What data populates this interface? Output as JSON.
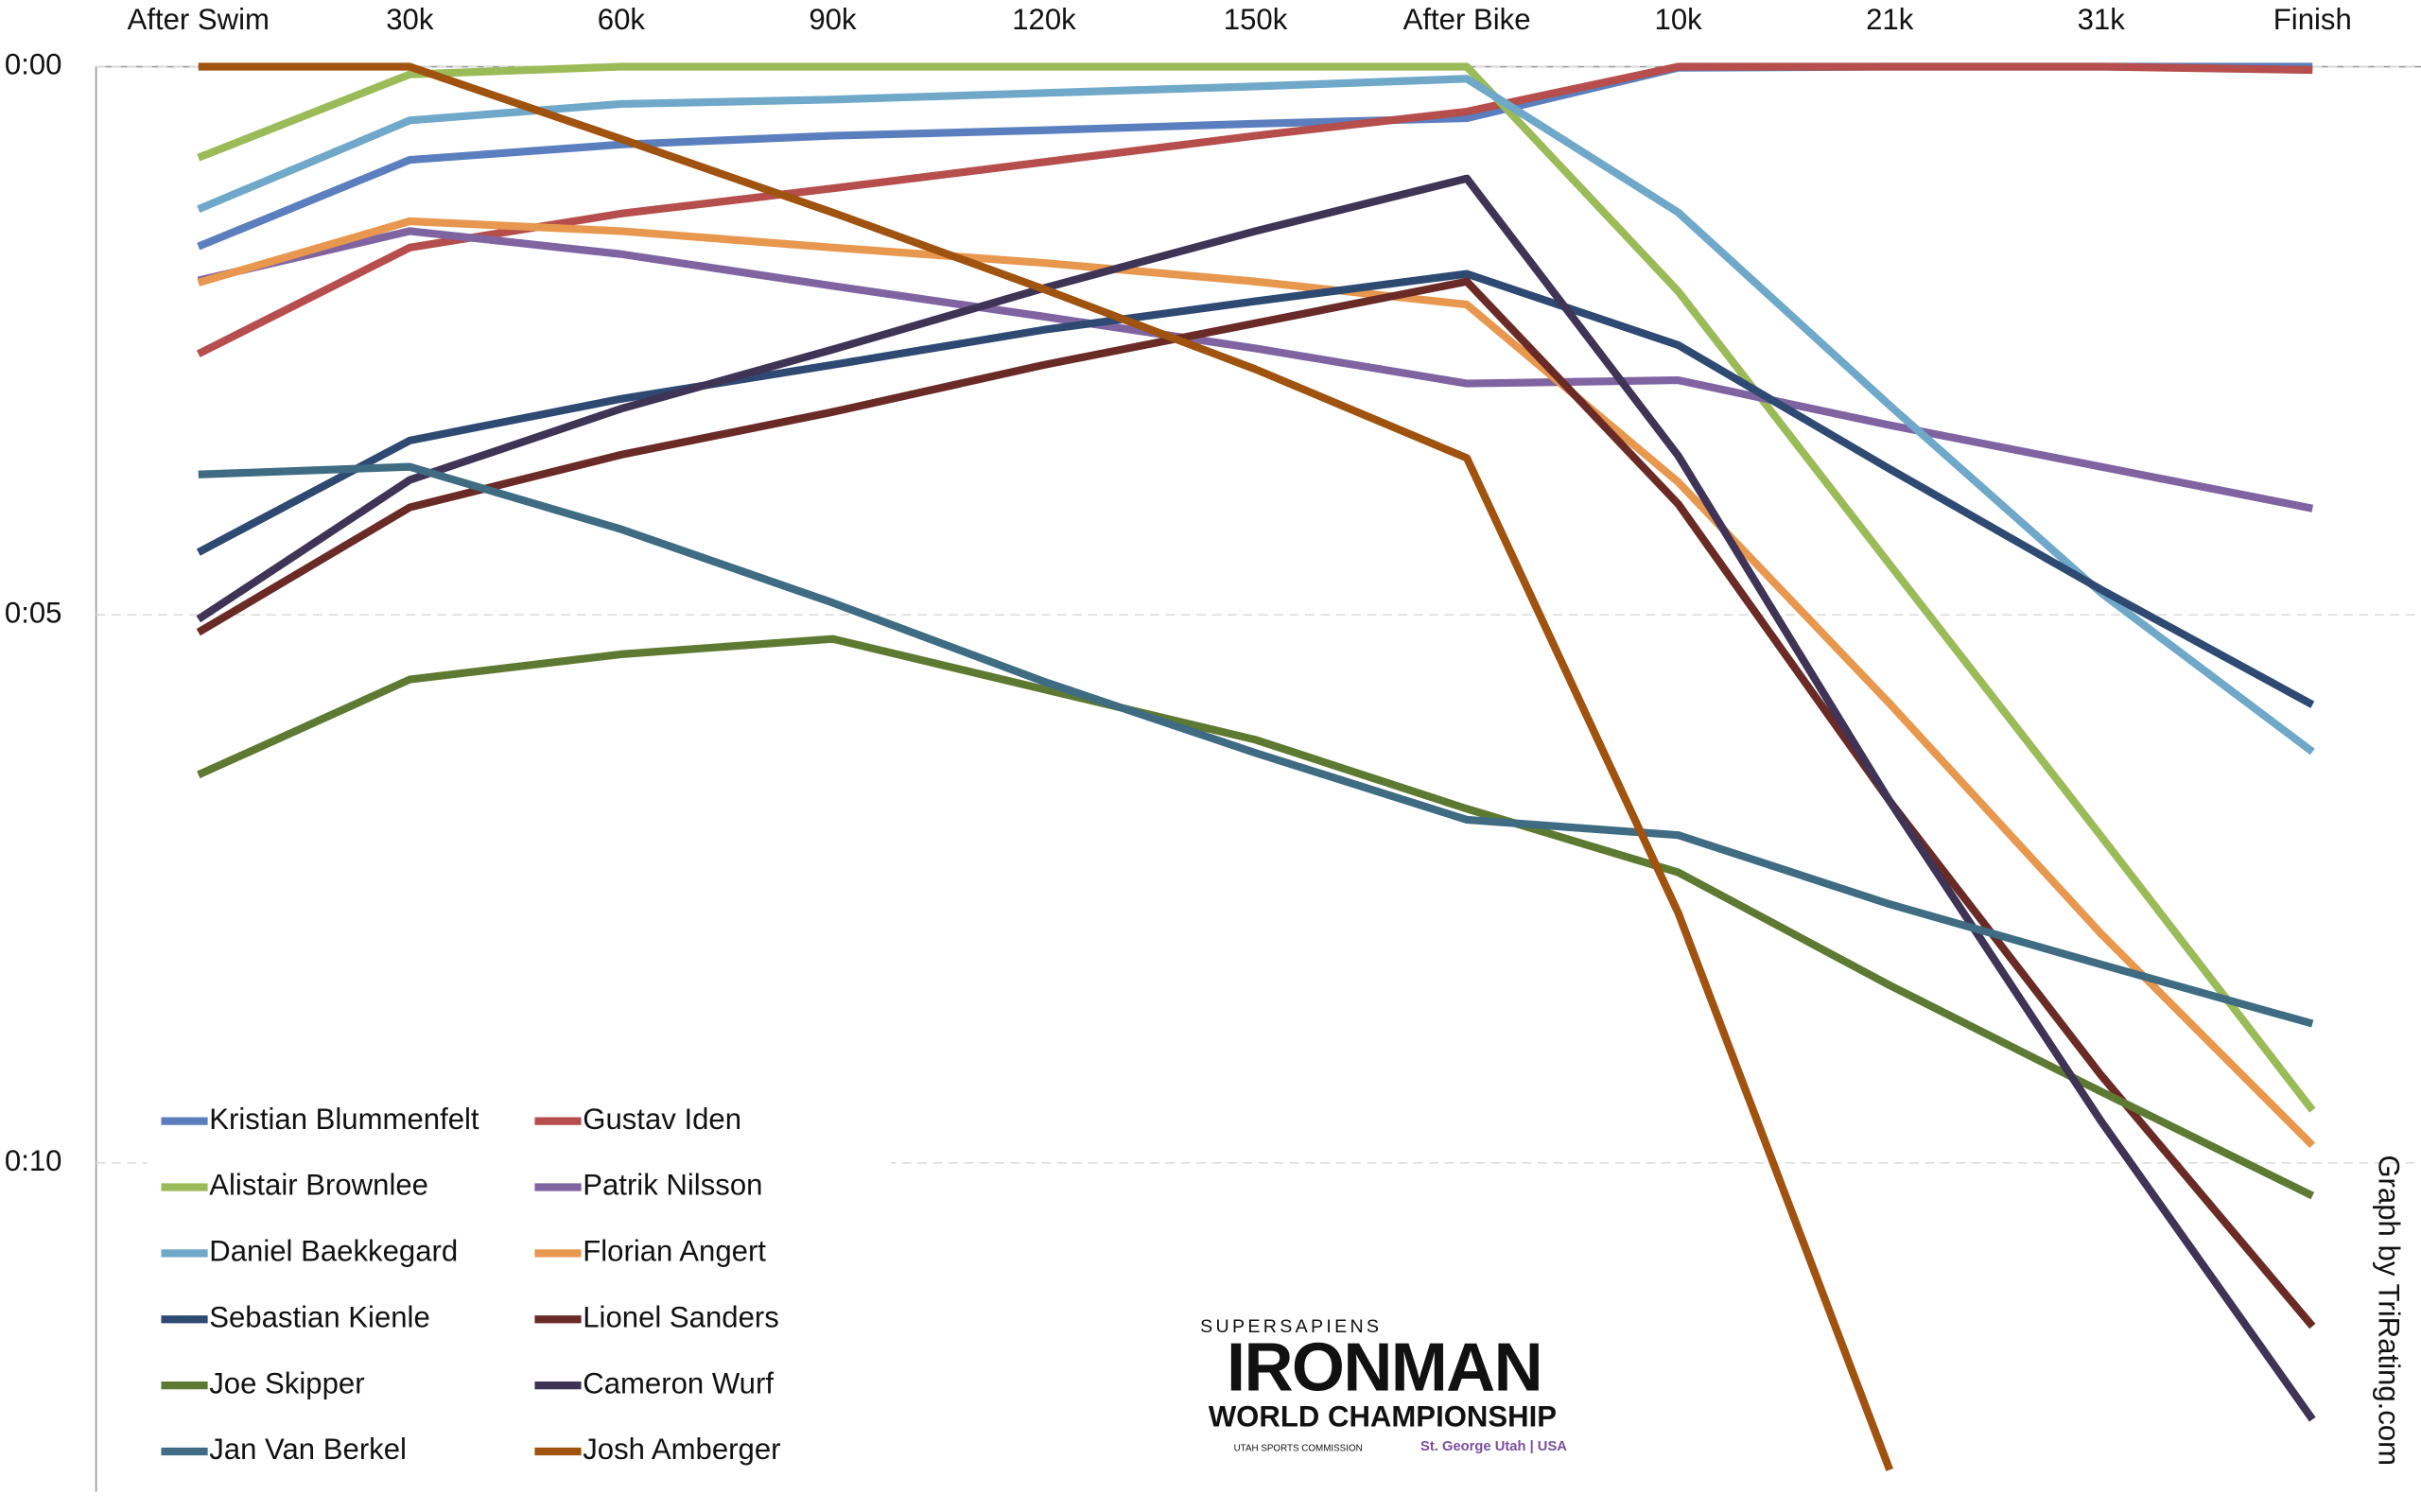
{
  "chart_data": {
    "type": "line",
    "categories": [
      "After Swim",
      "30k",
      "60k",
      "90k",
      "120k",
      "150k",
      "After Bike",
      "10k",
      "21k",
      "31k",
      "Finish"
    ],
    "ylim": [
      0,
      13
    ],
    "y_reversed": true,
    "yticks": [
      {
        "value": 0,
        "label": "0:00"
      },
      {
        "value": 5,
        "label": "0:05"
      },
      {
        "value": 10,
        "label": "0:10"
      }
    ],
    "grid": true,
    "legend": "bottom-left",
    "series": [
      {
        "name": "Kristian Blummenfelt",
        "color": "#5b7fbe",
        "values": [
          1.64,
          0.85,
          0.71,
          0.63,
          0.58,
          0.52,
          0.47,
          0.01,
          0,
          0,
          0
        ]
      },
      {
        "name": "Gustav Iden",
        "color": "#b54e4c",
        "values": [
          2.62,
          1.65,
          1.34,
          1.11,
          0.87,
          0.63,
          0.41,
          0,
          0,
          0,
          0.03
        ]
      },
      {
        "name": "Alistair Brownlee",
        "color": "#9bbb59",
        "values": [
          0.83,
          0.07,
          0,
          0,
          0,
          0,
          0,
          2.05,
          4.54,
          7.02,
          9.52
        ]
      },
      {
        "name": "Patrik Nilsson",
        "color": "#8064a2",
        "values": [
          1.95,
          1.5,
          1.71,
          2.0,
          2.28,
          2.57,
          2.89,
          2.86,
          3.27,
          3.65,
          4.03
        ]
      },
      {
        "name": "Daniel Baekkegard",
        "color": "#6fa8c8",
        "values": [
          1.3,
          0.49,
          0.34,
          0.3,
          0.24,
          0.18,
          0.11,
          1.33,
          3.09,
          4.8,
          6.25
        ]
      },
      {
        "name": "Florian Angert",
        "color": "#e8974e",
        "values": [
          1.97,
          1.41,
          1.5,
          1.65,
          1.79,
          1.96,
          2.17,
          3.79,
          5.81,
          7.91,
          9.84
        ]
      },
      {
        "name": "Sebastian Kienle",
        "color": "#2e4a72",
        "values": [
          4.43,
          3.41,
          3.03,
          2.72,
          2.4,
          2.14,
          1.89,
          2.54,
          3.67,
          4.77,
          5.82
        ]
      },
      {
        "name": "Lionel Sanders",
        "color": "#6a2a26",
        "values": [
          5.16,
          4.02,
          3.54,
          3.15,
          2.72,
          2.34,
          1.96,
          3.99,
          6.7,
          9.2,
          11.49
        ]
      },
      {
        "name": "Joe Skipper",
        "color": "#5e7a32",
        "values": [
          6.46,
          5.59,
          5.36,
          5.22,
          5.68,
          6.14,
          6.77,
          7.35,
          8.38,
          9.35,
          10.3
        ]
      },
      {
        "name": "Cameron Wurf",
        "color": "#3f3356",
        "values": [
          5.04,
          3.77,
          3.12,
          2.58,
          2.02,
          1.5,
          1.02,
          3.55,
          6.7,
          9.62,
          12.34
        ]
      },
      {
        "name": "Jan Van Berkel",
        "color": "#3f6c82",
        "values": [
          3.72,
          3.65,
          4.22,
          4.89,
          5.61,
          6.26,
          6.87,
          7.01,
          7.64,
          8.19,
          8.73
        ]
      },
      {
        "name": "Josh Amberger",
        "color": "#a0520f",
        "values": [
          0,
          0,
          0.66,
          1.33,
          2.03,
          2.76,
          3.57,
          7.72,
          12.8,
          null,
          null
        ]
      }
    ],
    "credit": "Graph by TriRating.com"
  },
  "logo": {
    "brand": "SUPERSAPIENS",
    "name": "IRONMAN",
    "event": "WORLD CHAMPIONSHIP",
    "location": "St. George Utah | USA",
    "sponsor": "UTAH SPORTS COMMISSION"
  }
}
